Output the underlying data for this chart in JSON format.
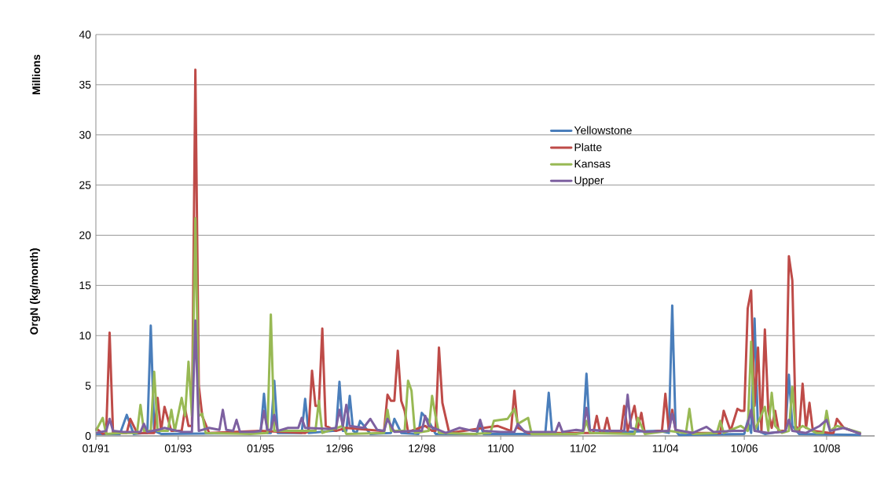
{
  "chart_data": {
    "type": "line",
    "ylabel": "OrgN (kg/month)",
    "annotations": [
      "Millions"
    ],
    "xlim": [
      "1991-01",
      "2009-12"
    ],
    "ylim": [
      0,
      40
    ],
    "yticks": [
      0,
      5,
      10,
      15,
      20,
      25,
      30,
      35,
      40
    ],
    "xticks": [
      {
        "value": "1991-01",
        "label": "01/91"
      },
      {
        "value": "1993-01",
        "label": "01/93"
      },
      {
        "value": "1995-01",
        "label": "01/95"
      },
      {
        "value": "1996-12",
        "label": "12/96"
      },
      {
        "value": "1998-12",
        "label": "12/98"
      },
      {
        "value": "2000-11",
        "label": "11/00"
      },
      {
        "value": "2002-11",
        "label": "11/02"
      },
      {
        "value": "2004-11",
        "label": "11/04"
      },
      {
        "value": "2006-10",
        "label": "10/06"
      },
      {
        "value": "2008-10",
        "label": "10/08"
      }
    ],
    "grid": "y",
    "legend": "right",
    "marker": "none",
    "line_style": "solid",
    "series": [
      {
        "name": "Yellowstone",
        "color": "#4a7ebb",
        "x": [
          "1991-01",
          "1991-08",
          "1991-10",
          "1991-12",
          "1992-03",
          "1992-04",
          "1992-05",
          "1992-06",
          "1992-08",
          "1994-12",
          "1995-01",
          "1995-02",
          "1995-03",
          "1995-04",
          "1995-05",
          "1995-06",
          "1995-12",
          "1996-01",
          "1996-02",
          "1996-03",
          "1996-10",
          "1996-11",
          "1996-12",
          "1997-01",
          "1997-02",
          "1997-03",
          "1997-04",
          "1997-05",
          "1997-06",
          "1997-09",
          "1998-03",
          "1998-04",
          "1998-06",
          "1998-11",
          "1998-12",
          "1999-02",
          "1999-04",
          "2000-04",
          "2000-05",
          "2000-06",
          "2001-12",
          "2002-01",
          "2002-02",
          "2002-10",
          "2002-11",
          "2002-12",
          "2003-01",
          "2004-09",
          "2004-12",
          "2005-01",
          "2005-02",
          "2005-03",
          "2006-10",
          "2006-11",
          "2006-12",
          "2007-01",
          "2007-02",
          "2007-04",
          "2007-10",
          "2007-11",
          "2007-12",
          "2008-02",
          "2009-08"
        ],
        "values": [
          0.2,
          0.2,
          2.1,
          0.2,
          0.3,
          0.3,
          11,
          0.5,
          0.2,
          0.3,
          0.3,
          4.2,
          0.3,
          0.3,
          5.5,
          0.3,
          0.3,
          0.3,
          3.7,
          0.3,
          0.5,
          0.5,
          5.4,
          0.5,
          0.5,
          4,
          0.5,
          0.3,
          1.5,
          0.2,
          0.3,
          1.7,
          0.3,
          0.2,
          2.3,
          1.5,
          0.2,
          0.2,
          1.2,
          0.2,
          0.2,
          4.3,
          0.2,
          0.3,
          0.3,
          6.2,
          0.3,
          0.5,
          0.3,
          13,
          0.5,
          0.1,
          0.2,
          1.5,
          0.3,
          11.7,
          0.5,
          0.2,
          0.5,
          6.1,
          1,
          0.2,
          0.1
        ]
      },
      {
        "name": "Platte",
        "color": "#be4b48",
        "x": [
          "1991-01",
          "1991-03",
          "1991-04",
          "1991-05",
          "1991-06",
          "1991-07",
          "1991-10",
          "1991-11",
          "1992-01",
          "1992-06",
          "1992-07",
          "1992-08",
          "1992-09",
          "1992-11",
          "1993-02",
          "1993-03",
          "1993-04",
          "1993-05",
          "1993-06",
          "1993-07",
          "1993-08",
          "1993-10",
          "1995-01",
          "1996-02",
          "1996-03",
          "1996-04",
          "1996-05",
          "1996-06",
          "1996-07",
          "1996-08",
          "1996-11",
          "1997-02",
          "1997-12",
          "1998-01",
          "1998-02",
          "1998-03",
          "1998-04",
          "1998-05",
          "1998-06",
          "1998-07",
          "1998-08",
          "1999-01",
          "1999-03",
          "1999-04",
          "1999-05",
          "1999-06",
          "1999-08",
          "2000-10",
          "2001-02",
          "2001-03",
          "2001-04",
          "2001-07",
          "2002-09",
          "2003-02",
          "2003-03",
          "2003-04",
          "2003-05",
          "2003-06",
          "2003-07",
          "2003-10",
          "2003-11",
          "2003-12",
          "2004-02",
          "2004-03",
          "2004-04",
          "2004-05",
          "2004-09",
          "2004-10",
          "2004-11",
          "2004-12",
          "2005-01",
          "2005-02",
          "2005-08",
          "2006-03",
          "2006-04",
          "2006-06",
          "2006-08",
          "2006-09",
          "2006-10",
          "2006-11",
          "2006-12",
          "2007-01",
          "2007-02",
          "2007-03",
          "2007-04",
          "2007-05",
          "2007-06",
          "2007-07",
          "2007-08",
          "2007-10",
          "2007-11",
          "2007-12",
          "2008-01",
          "2008-02",
          "2008-03",
          "2008-04",
          "2008-05",
          "2008-06",
          "2008-11",
          "2008-12",
          "2009-01",
          "2009-03",
          "2009-08"
        ],
        "values": [
          0.8,
          0.2,
          0.3,
          10.3,
          0.3,
          0.3,
          0.3,
          1.7,
          0.3,
          0.3,
          3.8,
          0.5,
          2.9,
          0.5,
          0.5,
          2.7,
          1,
          1,
          36.5,
          5,
          2,
          0.3,
          0.5,
          0.3,
          0.5,
          6.5,
          3,
          3,
          10.7,
          1,
          0.5,
          0.8,
          0.5,
          0.5,
          4.1,
          3.5,
          3.5,
          8.5,
          3.5,
          2.5,
          0.4,
          1,
          0.5,
          0.5,
          8.8,
          3.3,
          0.3,
          1,
          0.5,
          4.5,
          0.8,
          0.3,
          0.3,
          0.3,
          2,
          0.3,
          0.3,
          1.8,
          0.3,
          0.3,
          3,
          0.5,
          3,
          0.8,
          2.3,
          0.3,
          0.5,
          0.5,
          4.2,
          0.5,
          2.6,
          0.5,
          0.3,
          0.3,
          2.5,
          0.5,
          2.7,
          2.5,
          2.5,
          12.7,
          14.5,
          3,
          8.8,
          0.5,
          10.6,
          2.5,
          0.8,
          2.5,
          0.5,
          0.5,
          17.9,
          15.5,
          1,
          0.5,
          5.2,
          0.8,
          3.3,
          0.5,
          0.3,
          0.3,
          1.7,
          0.8,
          0.2
        ]
      },
      {
        "name": "Kansas",
        "color": "#98b954",
        "x": [
          "1991-01",
          "1991-03",
          "1991-04",
          "1991-08",
          "1992-01",
          "1992-02",
          "1992-03",
          "1992-05",
          "1992-06",
          "1992-07",
          "1992-10",
          "1992-11",
          "1992-12",
          "1993-02",
          "1993-03",
          "1993-04",
          "1993-05",
          "1993-06",
          "1993-07",
          "1993-08",
          "1993-09",
          "1994-10",
          "1995-03",
          "1995-04",
          "1995-05",
          "1996-01",
          "1996-05",
          "1996-06",
          "1996-07",
          "1997-01",
          "1997-02",
          "1998-01",
          "1998-02",
          "1998-03",
          "1998-07",
          "1998-08",
          "1998-09",
          "1998-10",
          "1999-02",
          "1999-03",
          "1999-04",
          "1999-05",
          "2000-03",
          "2000-08",
          "2000-09",
          "2001-01",
          "2001-03",
          "2001-04",
          "2001-07",
          "2001-08",
          "2002-09",
          "2002-11",
          "2002-12",
          "2003-01",
          "2004-02",
          "2004-03",
          "2004-05",
          "2004-12",
          "2005-05",
          "2005-06",
          "2005-07",
          "2006-02",
          "2006-03",
          "2006-04",
          "2006-09",
          "2006-11",
          "2006-12",
          "2007-01",
          "2007-04",
          "2007-05",
          "2007-06",
          "2007-07",
          "2007-09",
          "2007-11",
          "2007-12",
          "2008-01",
          "2008-03",
          "2008-07",
          "2008-09",
          "2008-10",
          "2008-11",
          "2009-01",
          "2009-08"
        ],
        "values": [
          0.5,
          1.8,
          0.2,
          0.3,
          0.3,
          3.1,
          0.5,
          0.5,
          6.4,
          0.5,
          0.5,
          2.6,
          0.5,
          3.8,
          2,
          7.4,
          2,
          21.7,
          2,
          2.2,
          0.3,
          0.2,
          0.3,
          12.1,
          0.5,
          0.5,
          0.5,
          3.5,
          0.3,
          1,
          0.2,
          0.3,
          2.6,
          0.5,
          0.5,
          5.5,
          4.5,
          0.3,
          0.5,
          4,
          2,
          0.3,
          0.2,
          0.3,
          1.5,
          1.7,
          2.7,
          1.2,
          1.8,
          0.2,
          0.2,
          0.3,
          1.5,
          0.3,
          0.2,
          1.8,
          0.2,
          0.5,
          0.3,
          2.7,
          0.2,
          0.3,
          1.5,
          0.3,
          1,
          0.5,
          9.4,
          0.5,
          2.9,
          0.5,
          4.3,
          1,
          0.3,
          0.5,
          4.9,
          0.5,
          1,
          0.3,
          0.3,
          2.5,
          0.5,
          1,
          0.3
        ]
      },
      {
        "name": "Upper",
        "color": "#7d60a0",
        "x": [
          "1991-01",
          "1991-04",
          "1991-05",
          "1991-06",
          "1991-09",
          "1992-02",
          "1992-03",
          "1992-04",
          "1992-07",
          "1992-09",
          "1993-02",
          "1993-05",
          "1993-06",
          "1993-07",
          "1993-10",
          "1994-01",
          "1994-02",
          "1994-03",
          "1994-05",
          "1994-06",
          "1994-07",
          "1994-11",
          "1995-01",
          "1995-02",
          "1995-03",
          "1995-04",
          "1995-05",
          "1995-06",
          "1995-09",
          "1995-12",
          "1996-01",
          "1996-02",
          "1996-09",
          "1996-11",
          "1996-12",
          "1997-01",
          "1997-02",
          "1997-03",
          "1997-07",
          "1997-09",
          "1997-11",
          "1998-01",
          "1998-02",
          "1998-04",
          "1998-10",
          "1998-12",
          "1999-01",
          "1999-02",
          "1999-07",
          "1999-11",
          "2000-03",
          "2000-04",
          "2000-05",
          "2000-06",
          "2000-11",
          "2001-03",
          "2001-04",
          "2001-06",
          "2002-03",
          "2002-04",
          "2002-05",
          "2002-09",
          "2002-11",
          "2002-12",
          "2003-01",
          "2003-07",
          "2003-11",
          "2003-12",
          "2004-01",
          "2004-05",
          "2004-12",
          "2005-01",
          "2005-02",
          "2005-07",
          "2005-11",
          "2006-01",
          "2006-07",
          "2006-10",
          "2006-11",
          "2006-12",
          "2007-01",
          "2007-05",
          "2007-09",
          "2007-10",
          "2007-11",
          "2007-12",
          "2008-04",
          "2008-08",
          "2008-10",
          "2008-11",
          "2009-03",
          "2009-08"
        ],
        "values": [
          0.3,
          0.5,
          1.7,
          0.5,
          0.4,
          0.4,
          1.2,
          0.4,
          0.6,
          0.8,
          0.4,
          0.4,
          11.5,
          0.5,
          0.8,
          0.6,
          2.6,
          0.6,
          0.5,
          1.6,
          0.4,
          0.4,
          0.5,
          2.5,
          0.6,
          0.6,
          2.1,
          0.5,
          0.8,
          0.8,
          1.8,
          0.8,
          0.7,
          0.8,
          2.6,
          1,
          3.1,
          1,
          0.8,
          1.7,
          0.6,
          0.5,
          1.7,
          0.4,
          0.5,
          0.5,
          2,
          1,
          0.3,
          0.8,
          0.5,
          0.5,
          1.6,
          0.5,
          0.4,
          0.4,
          1.2,
          0.4,
          0.4,
          1.3,
          0.4,
          0.6,
          0.5,
          2.8,
          0.6,
          0.5,
          0.5,
          4.1,
          0.8,
          0.4,
          0.5,
          2.2,
          0.6,
          0.3,
          0.9,
          0.4,
          0.5,
          0.5,
          1.2,
          2.6,
          0.5,
          0.3,
          0.4,
          0.5,
          1.6,
          0.5,
          0.3,
          1,
          1.6,
          0.5,
          0.8,
          0.2
        ]
      }
    ]
  }
}
